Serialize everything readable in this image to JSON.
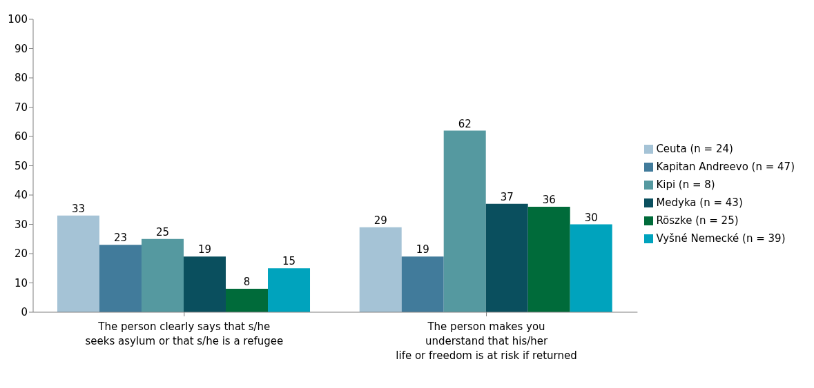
{
  "chart_data": {
    "type": "bar",
    "categories": [
      "The person clearly says that s/he\nseeks asylum or that s/he is a refugee",
      "The person makes you\nunderstand that his/her\nlife or freedom is at risk if returned"
    ],
    "series": [
      {
        "name": "Ceuta (n = 24)",
        "color": "#a5c3d6",
        "values": [
          33,
          29
        ]
      },
      {
        "name": "Kapitan Andreevo (n = 47)",
        "color": "#417b9b",
        "values": [
          23,
          19
        ]
      },
      {
        "name": "Kipi (n = 8)",
        "color": "#5599a0",
        "values": [
          25,
          62
        ]
      },
      {
        "name": "Medyka (n = 43)",
        "color": "#0a4f5e",
        "values": [
          19,
          37
        ]
      },
      {
        "name": "Röszke (n = 25)",
        "color": "#006b3a",
        "values": [
          8,
          36
        ]
      },
      {
        "name": "Vyšné Nemecké (n = 39)",
        "color": "#00a3bd",
        "values": [
          15,
          30
        ]
      }
    ],
    "ylim": [
      0,
      100
    ],
    "yticks": [
      0,
      10,
      20,
      30,
      40,
      50,
      60,
      70,
      80,
      90,
      100
    ],
    "grid": false,
    "legend": "right",
    "data_labels": true
  }
}
